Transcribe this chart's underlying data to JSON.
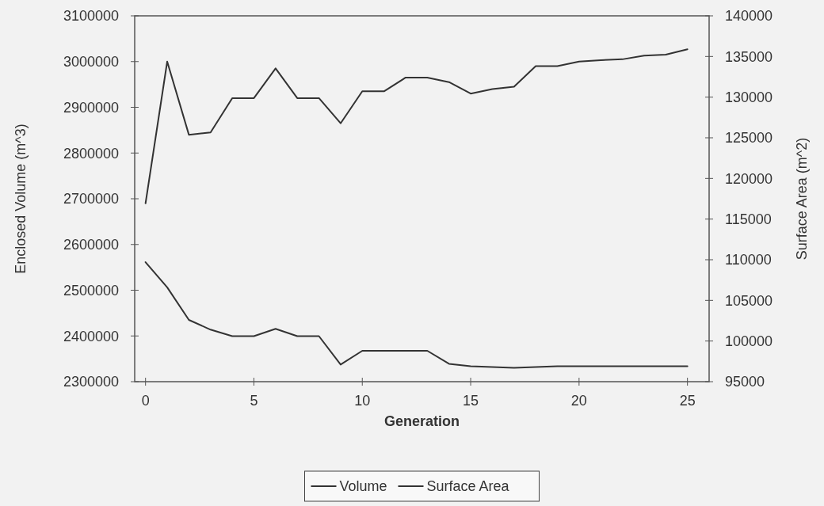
{
  "chart_data": {
    "type": "line",
    "xlabel": "Generation",
    "ylabel": "Enclosed Volume (m^3)",
    "y2label": "Surface Area (m^2)",
    "x": [
      0,
      1,
      2,
      3,
      4,
      5,
      6,
      7,
      8,
      9,
      10,
      11,
      12,
      13,
      14,
      15,
      16,
      17,
      18,
      19,
      20,
      21,
      22,
      23,
      24,
      25
    ],
    "series": [
      {
        "name": "Volume",
        "color": "#333333",
        "values": [
          2690000,
          3000000,
          2840000,
          2845000,
          2920000,
          2920000,
          2985000,
          2920000,
          2920000,
          2865000,
          2935000,
          2935000,
          2965000,
          2965000,
          2955000,
          2930000,
          2940000,
          2945000,
          2990000,
          2990000,
          3000000,
          3003000,
          3005000,
          3013000,
          3015000,
          3027000
        ]
      },
      {
        "name": "Surface Area",
        "color": "#333333",
        "axis": "y2",
        "values": [
          109700,
          106600,
          102600,
          101400,
          100600,
          100600,
          101500,
          100600,
          100600,
          97100,
          98800,
          98800,
          98800,
          98800,
          97200,
          96900,
          96800,
          96700,
          96800,
          96900,
          96900,
          96900,
          96900,
          96900,
          96900,
          96900
        ]
      }
    ],
    "xlim": [
      -0.5,
      26
    ],
    "xticks": [
      0,
      5,
      10,
      15,
      20,
      25
    ],
    "ylim": [
      2300000,
      3100000
    ],
    "yticks": [
      2300000,
      2400000,
      2500000,
      2600000,
      2700000,
      2800000,
      2900000,
      3000000,
      3100000
    ],
    "y2lim": [
      95000,
      140000
    ],
    "y2ticks": [
      95000,
      100000,
      105000,
      110000,
      115000,
      120000,
      125000,
      130000,
      135000,
      140000
    ],
    "grid": false,
    "legend": "bottom",
    "line_style": "solid",
    "marker": "none"
  }
}
